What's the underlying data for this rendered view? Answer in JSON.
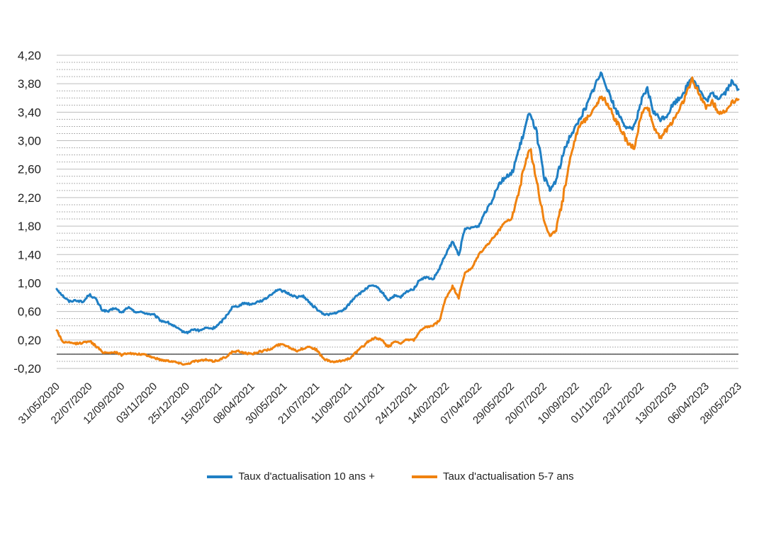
{
  "chart_data": {
    "type": "line",
    "title": "",
    "xlabel": "",
    "ylabel": "",
    "ylim": [
      -0.2,
      4.2
    ],
    "y_ticks": [
      "4,20",
      "3,80",
      "3,40",
      "3,00",
      "2,60",
      "2,20",
      "1,80",
      "1,40",
      "1,00",
      "0,60",
      "0,20",
      "-0,20"
    ],
    "y_tick_values": [
      4.2,
      3.8,
      3.4,
      3.0,
      2.6,
      2.2,
      1.8,
      1.4,
      1.0,
      0.6,
      0.2,
      -0.2
    ],
    "x_range": [
      "2020-05-31",
      "2023-05-28"
    ],
    "x_ticks": [
      {
        "label": "31/05/2020",
        "date": "2020-05-31"
      },
      {
        "label": "22/07/2020",
        "date": "2020-07-22"
      },
      {
        "label": "12/09/2020",
        "date": "2020-09-12"
      },
      {
        "label": "03/11/2020",
        "date": "2020-11-03"
      },
      {
        "label": "25/12/2020",
        "date": "2020-12-25"
      },
      {
        "label": "15/02/2021",
        "date": "2021-02-15"
      },
      {
        "label": "08/04/2021",
        "date": "2021-04-08"
      },
      {
        "label": "30/05/2021",
        "date": "2021-05-30"
      },
      {
        "label": "21/07/2021",
        "date": "2021-07-21"
      },
      {
        "label": "11/09/2021",
        "date": "2021-09-11"
      },
      {
        "label": "02/11/2021",
        "date": "2021-11-02"
      },
      {
        "label": "24/12/2021",
        "date": "2021-12-24"
      },
      {
        "label": "14/02/2022",
        "date": "2022-02-14"
      },
      {
        "label": "07/04/2022",
        "date": "2022-04-07"
      },
      {
        "label": "29/05/2022",
        "date": "2022-05-29"
      },
      {
        "label": "20/07/2022",
        "date": "2022-07-20"
      },
      {
        "label": "10/09/2022",
        "date": "2022-09-10"
      },
      {
        "label": "01/11/2022",
        "date": "2022-11-01"
      },
      {
        "label": "23/12/2022",
        "date": "2022-12-23"
      },
      {
        "label": "13/02/2023",
        "date": "2023-02-13"
      },
      {
        "label": "06/04/2023",
        "date": "2023-04-06"
      },
      {
        "label": "28/05/2023",
        "date": "2023-05-28"
      }
    ],
    "grid": true,
    "legend_position": "bottom",
    "series": [
      {
        "name": "Taux d'actualisation 10 ans +",
        "color": "#1F7FC4",
        "points": [
          [
            "2020-05-31",
            0.92
          ],
          [
            "2020-06-10",
            0.82
          ],
          [
            "2020-06-20",
            0.74
          ],
          [
            "2020-07-01",
            0.76
          ],
          [
            "2020-07-12",
            0.73
          ],
          [
            "2020-07-22",
            0.84
          ],
          [
            "2020-08-01",
            0.78
          ],
          [
            "2020-08-12",
            0.62
          ],
          [
            "2020-08-22",
            0.6
          ],
          [
            "2020-09-01",
            0.65
          ],
          [
            "2020-09-12",
            0.58
          ],
          [
            "2020-09-22",
            0.66
          ],
          [
            "2020-10-02",
            0.6
          ],
          [
            "2020-10-13",
            0.59
          ],
          [
            "2020-10-24",
            0.57
          ],
          [
            "2020-11-03",
            0.55
          ],
          [
            "2020-11-14",
            0.47
          ],
          [
            "2020-11-24",
            0.45
          ],
          [
            "2020-12-04",
            0.4
          ],
          [
            "2020-12-14",
            0.34
          ],
          [
            "2020-12-25",
            0.3
          ],
          [
            "2021-01-05",
            0.35
          ],
          [
            "2021-01-15",
            0.33
          ],
          [
            "2021-01-25",
            0.37
          ],
          [
            "2021-02-05",
            0.36
          ],
          [
            "2021-02-15",
            0.42
          ],
          [
            "2021-02-25",
            0.52
          ],
          [
            "2021-03-08",
            0.66
          ],
          [
            "2021-03-18",
            0.68
          ],
          [
            "2021-03-28",
            0.72
          ],
          [
            "2021-04-08",
            0.7
          ],
          [
            "2021-04-18",
            0.74
          ],
          [
            "2021-04-28",
            0.76
          ],
          [
            "2021-05-09",
            0.84
          ],
          [
            "2021-05-20",
            0.91
          ],
          [
            "2021-05-30",
            0.88
          ],
          [
            "2021-06-09",
            0.84
          ],
          [
            "2021-06-20",
            0.8
          ],
          [
            "2021-06-30",
            0.82
          ],
          [
            "2021-07-10",
            0.72
          ],
          [
            "2021-07-21",
            0.64
          ],
          [
            "2021-08-01",
            0.56
          ],
          [
            "2021-08-11",
            0.56
          ],
          [
            "2021-08-21",
            0.58
          ],
          [
            "2021-09-01",
            0.61
          ],
          [
            "2021-09-11",
            0.7
          ],
          [
            "2021-09-22",
            0.82
          ],
          [
            "2021-10-02",
            0.87
          ],
          [
            "2021-10-12",
            0.95
          ],
          [
            "2021-10-23",
            0.96
          ],
          [
            "2021-11-02",
            0.88
          ],
          [
            "2021-11-13",
            0.76
          ],
          [
            "2021-11-23",
            0.82
          ],
          [
            "2021-12-03",
            0.8
          ],
          [
            "2021-12-13",
            0.88
          ],
          [
            "2021-12-24",
            0.92
          ],
          [
            "2022-01-03",
            1.05
          ],
          [
            "2022-01-13",
            1.08
          ],
          [
            "2022-01-24",
            1.05
          ],
          [
            "2022-02-03",
            1.2
          ],
          [
            "2022-02-14",
            1.42
          ],
          [
            "2022-02-24",
            1.58
          ],
          [
            "2022-03-06",
            1.4
          ],
          [
            "2022-03-16",
            1.76
          ],
          [
            "2022-03-27",
            1.78
          ],
          [
            "2022-04-07",
            1.8
          ],
          [
            "2022-04-17",
            2.0
          ],
          [
            "2022-04-27",
            2.15
          ],
          [
            "2022-05-08",
            2.38
          ],
          [
            "2022-05-18",
            2.48
          ],
          [
            "2022-05-29",
            2.52
          ],
          [
            "2022-06-08",
            2.8
          ],
          [
            "2022-06-18",
            3.1
          ],
          [
            "2022-06-28",
            3.42
          ],
          [
            "2022-07-09",
            3.1
          ],
          [
            "2022-07-20",
            2.5
          ],
          [
            "2022-07-30",
            2.3
          ],
          [
            "2022-08-09",
            2.45
          ],
          [
            "2022-08-20",
            2.8
          ],
          [
            "2022-08-30",
            3.05
          ],
          [
            "2022-09-10",
            3.2
          ],
          [
            "2022-09-20",
            3.38
          ],
          [
            "2022-09-30",
            3.55
          ],
          [
            "2022-10-11",
            3.8
          ],
          [
            "2022-10-21",
            3.95
          ],
          [
            "2022-11-01",
            3.7
          ],
          [
            "2022-11-11",
            3.45
          ],
          [
            "2022-11-22",
            3.3
          ],
          [
            "2022-12-02",
            3.15
          ],
          [
            "2022-12-12",
            3.2
          ],
          [
            "2022-12-23",
            3.55
          ],
          [
            "2023-01-02",
            3.72
          ],
          [
            "2023-01-12",
            3.4
          ],
          [
            "2023-01-23",
            3.3
          ],
          [
            "2023-02-02",
            3.35
          ],
          [
            "2023-02-13",
            3.52
          ],
          [
            "2023-02-23",
            3.6
          ],
          [
            "2023-03-05",
            3.74
          ],
          [
            "2023-03-15",
            3.9
          ],
          [
            "2023-03-26",
            3.72
          ],
          [
            "2023-04-06",
            3.55
          ],
          [
            "2023-04-16",
            3.66
          ],
          [
            "2023-04-26",
            3.6
          ],
          [
            "2023-05-07",
            3.68
          ],
          [
            "2023-05-17",
            3.82
          ],
          [
            "2023-05-28",
            3.72
          ]
        ]
      },
      {
        "name": "Taux d'actualisation 5-7 ans",
        "color": "#F0820F",
        "points": [
          [
            "2020-05-31",
            0.34
          ],
          [
            "2020-06-10",
            0.17
          ],
          [
            "2020-06-20",
            0.16
          ],
          [
            "2020-07-01",
            0.15
          ],
          [
            "2020-07-12",
            0.16
          ],
          [
            "2020-07-22",
            0.19
          ],
          [
            "2020-08-01",
            0.12
          ],
          [
            "2020-08-12",
            0.03
          ],
          [
            "2020-08-22",
            0.02
          ],
          [
            "2020-09-01",
            0.03
          ],
          [
            "2020-09-12",
            -0.01
          ],
          [
            "2020-09-22",
            0.02
          ],
          [
            "2020-10-02",
            0.0
          ],
          [
            "2020-10-13",
            0.0
          ],
          [
            "2020-10-24",
            -0.02
          ],
          [
            "2020-11-03",
            -0.05
          ],
          [
            "2020-11-14",
            -0.08
          ],
          [
            "2020-11-24",
            -0.09
          ],
          [
            "2020-12-04",
            -0.1
          ],
          [
            "2020-12-14",
            -0.13
          ],
          [
            "2020-12-25",
            -0.14
          ],
          [
            "2021-01-05",
            -0.1
          ],
          [
            "2021-01-15",
            -0.09
          ],
          [
            "2021-01-25",
            -0.08
          ],
          [
            "2021-02-05",
            -0.1
          ],
          [
            "2021-02-15",
            -0.08
          ],
          [
            "2021-02-25",
            -0.04
          ],
          [
            "2021-03-08",
            0.03
          ],
          [
            "2021-03-18",
            0.04
          ],
          [
            "2021-03-28",
            0.02
          ],
          [
            "2021-04-08",
            0.0
          ],
          [
            "2021-04-18",
            0.03
          ],
          [
            "2021-04-28",
            0.05
          ],
          [
            "2021-05-09",
            0.07
          ],
          [
            "2021-05-20",
            0.13
          ],
          [
            "2021-05-30",
            0.14
          ],
          [
            "2021-06-09",
            0.09
          ],
          [
            "2021-06-20",
            0.05
          ],
          [
            "2021-06-30",
            0.08
          ],
          [
            "2021-07-10",
            0.11
          ],
          [
            "2021-07-21",
            0.06
          ],
          [
            "2021-08-01",
            -0.06
          ],
          [
            "2021-08-11",
            -0.1
          ],
          [
            "2021-08-21",
            -0.11
          ],
          [
            "2021-09-01",
            -0.09
          ],
          [
            "2021-09-11",
            -0.06
          ],
          [
            "2021-09-22",
            0.02
          ],
          [
            "2021-10-02",
            0.1
          ],
          [
            "2021-10-12",
            0.18
          ],
          [
            "2021-10-23",
            0.23
          ],
          [
            "2021-11-02",
            0.2
          ],
          [
            "2021-11-13",
            0.1
          ],
          [
            "2021-11-23",
            0.18
          ],
          [
            "2021-12-03",
            0.16
          ],
          [
            "2021-12-13",
            0.2
          ],
          [
            "2021-12-24",
            0.2
          ],
          [
            "2022-01-03",
            0.32
          ],
          [
            "2022-01-13",
            0.38
          ],
          [
            "2022-01-24",
            0.4
          ],
          [
            "2022-02-03",
            0.47
          ],
          [
            "2022-02-14",
            0.8
          ],
          [
            "2022-02-24",
            0.95
          ],
          [
            "2022-03-06",
            0.8
          ],
          [
            "2022-03-16",
            1.15
          ],
          [
            "2022-03-27",
            1.2
          ],
          [
            "2022-04-07",
            1.4
          ],
          [
            "2022-04-17",
            1.5
          ],
          [
            "2022-04-27",
            1.6
          ],
          [
            "2022-05-08",
            1.72
          ],
          [
            "2022-05-18",
            1.85
          ],
          [
            "2022-05-29",
            1.9
          ],
          [
            "2022-06-08",
            2.2
          ],
          [
            "2022-06-18",
            2.6
          ],
          [
            "2022-06-28",
            2.9
          ],
          [
            "2022-07-09",
            2.45
          ],
          [
            "2022-07-20",
            1.9
          ],
          [
            "2022-07-30",
            1.65
          ],
          [
            "2022-08-09",
            1.75
          ],
          [
            "2022-08-20",
            2.2
          ],
          [
            "2022-08-30",
            2.7
          ],
          [
            "2022-09-10",
            3.1
          ],
          [
            "2022-09-20",
            3.25
          ],
          [
            "2022-09-30",
            3.35
          ],
          [
            "2022-10-11",
            3.5
          ],
          [
            "2022-10-21",
            3.62
          ],
          [
            "2022-11-01",
            3.5
          ],
          [
            "2022-11-11",
            3.3
          ],
          [
            "2022-11-22",
            3.15
          ],
          [
            "2022-12-02",
            2.95
          ],
          [
            "2022-12-12",
            2.9
          ],
          [
            "2022-12-23",
            3.35
          ],
          [
            "2023-01-02",
            3.5
          ],
          [
            "2023-01-12",
            3.2
          ],
          [
            "2023-01-23",
            3.05
          ],
          [
            "2023-02-02",
            3.15
          ],
          [
            "2023-02-13",
            3.3
          ],
          [
            "2023-02-23",
            3.45
          ],
          [
            "2023-03-05",
            3.65
          ],
          [
            "2023-03-15",
            3.86
          ],
          [
            "2023-03-26",
            3.65
          ],
          [
            "2023-04-06",
            3.48
          ],
          [
            "2023-04-16",
            3.55
          ],
          [
            "2023-04-26",
            3.4
          ],
          [
            "2023-05-07",
            3.4
          ],
          [
            "2023-05-17",
            3.55
          ],
          [
            "2023-05-28",
            3.58
          ]
        ]
      }
    ]
  }
}
